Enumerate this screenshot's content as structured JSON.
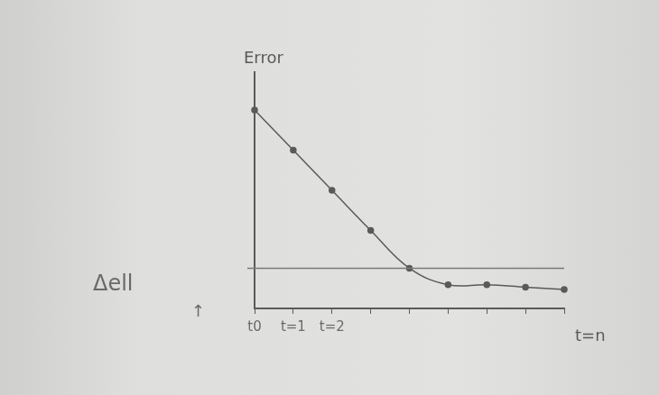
{
  "chart_data": {
    "type": "line",
    "y_label": "Error",
    "x_label": "t=n",
    "annotations": [
      "Δell",
      "↑"
    ],
    "categories": [
      "t0",
      "t=1",
      "t=2",
      null,
      null,
      null,
      null,
      null,
      null
    ],
    "values": [
      8.4,
      6.7,
      5.0,
      3.3,
      1.7,
      1.0,
      1.0,
      0.9,
      0.8
    ],
    "reference_line": 1.7,
    "ylim": [
      0,
      10
    ],
    "color": "#5a5a5a",
    "marker": "circle",
    "line_style": "solid",
    "grid": false,
    "tick_labels": "x"
  }
}
